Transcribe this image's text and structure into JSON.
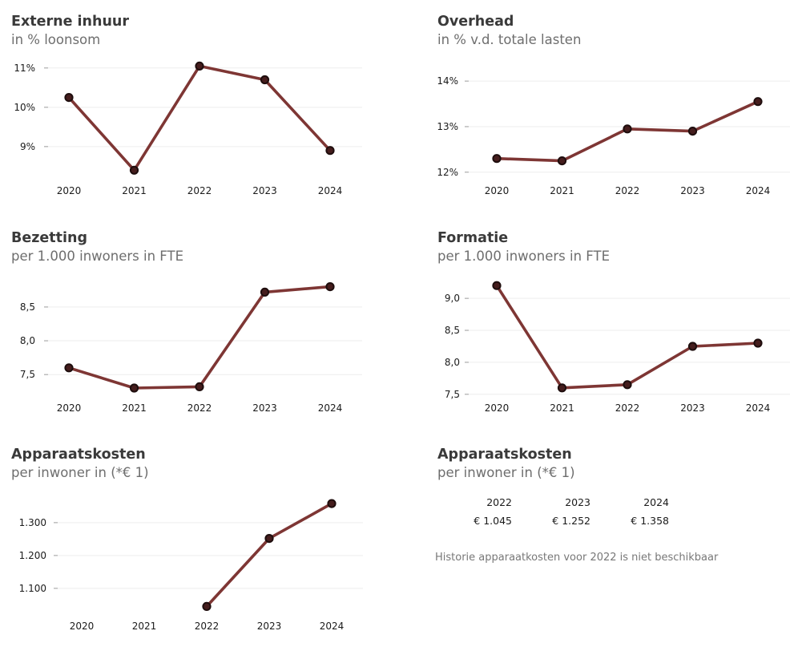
{
  "colors": {
    "line": "#7E3634",
    "marker_fill": "#451D1D",
    "marker_stroke": "#1E0D0D",
    "grid": "#EDEDED",
    "tick": "#9B9B9B",
    "axis": "#1B1B1B",
    "title": "#3A3A3A",
    "subtitle": "#6E6E6E",
    "note": "#787878"
  },
  "chart_data": [
    {
      "type": "line",
      "title": "Externe inhuur",
      "subtitle": "in % loonsom",
      "x": [
        "2020",
        "2021",
        "2022",
        "2023",
        "2024"
      ],
      "values": [
        10.25,
        8.4,
        11.05,
        10.7,
        8.9
      ],
      "y_ticks": [
        {
          "v": 9,
          "label": "9%"
        },
        {
          "v": 10,
          "label": "10%"
        },
        {
          "v": 11,
          "label": "11%"
        }
      ],
      "ylim": [
        8.14,
        11.2
      ],
      "grid": "horizontal-only",
      "legend": "none"
    },
    {
      "type": "line",
      "title": "Overhead",
      "subtitle": "in % v.d. totale lasten",
      "x": [
        "2020",
        "2021",
        "2022",
        "2023",
        "2024"
      ],
      "values": [
        12.3,
        12.25,
        12.95,
        12.9,
        13.55
      ],
      "y_ticks": [
        {
          "v": 12,
          "label": "12%"
        },
        {
          "v": 13,
          "label": "13%"
        },
        {
          "v": 14,
          "label": "14%"
        }
      ],
      "ylim": [
        11.82,
        14.46
      ],
      "grid": "horizontal-only",
      "legend": "none"
    },
    {
      "type": "line",
      "title": "Bezetting",
      "subtitle": "per 1.000 inwoners in FTE",
      "x": [
        "2020",
        "2021",
        "2022",
        "2023",
        "2024"
      ],
      "values": [
        7.6,
        7.3,
        7.32,
        8.72,
        8.8
      ],
      "y_ticks": [
        {
          "v": 7.5,
          "label": "7,5"
        },
        {
          "v": 8.0,
          "label": "8,0"
        },
        {
          "v": 8.5,
          "label": "8,5"
        }
      ],
      "ylim": [
        7.17,
        8.95
      ],
      "grid": "horizontal-only",
      "legend": "none"
    },
    {
      "type": "line",
      "title": "Formatie",
      "subtitle": "per 1.000 inwoners in FTE",
      "x": [
        "2020",
        "2021",
        "2022",
        "2023",
        "2024"
      ],
      "values": [
        9.2,
        7.6,
        7.65,
        8.25,
        8.3
      ],
      "y_ticks": [
        {
          "v": 7.5,
          "label": "7,5"
        },
        {
          "v": 8.0,
          "label": "8,0"
        },
        {
          "v": 8.5,
          "label": "8,5"
        },
        {
          "v": 9.0,
          "label": "9,0"
        }
      ],
      "ylim": [
        7.46,
        9.34
      ],
      "grid": "horizontal-only",
      "legend": "none"
    },
    {
      "type": "line",
      "title": "Apparaatskosten",
      "subtitle": "per inwoner in (*€ 1)",
      "x": [
        "2020",
        "2021",
        "2022",
        "2023",
        "2024"
      ],
      "values": [
        null,
        null,
        1045,
        1252,
        1358
      ],
      "y_ticks": [
        {
          "v": 1100,
          "label": "1.100"
        },
        {
          "v": 1200,
          "label": "1.200"
        },
        {
          "v": 1300,
          "label": "1.300"
        }
      ],
      "ylim": [
        1024,
        1390
      ],
      "grid": "horizontal-only",
      "legend": "none"
    },
    {
      "type": "table",
      "title": "Apparaatskosten",
      "subtitle": "per inwoner in (*€ 1)",
      "columns": [
        {
          "year": "2022",
          "value": "€ 1.045"
        },
        {
          "year": "2023",
          "value": "€ 1.252"
        },
        {
          "year": "2024",
          "value": "€ 1.358"
        }
      ],
      "note": "Historie apparaatkosten voor 2022 is niet beschikbaar"
    }
  ]
}
